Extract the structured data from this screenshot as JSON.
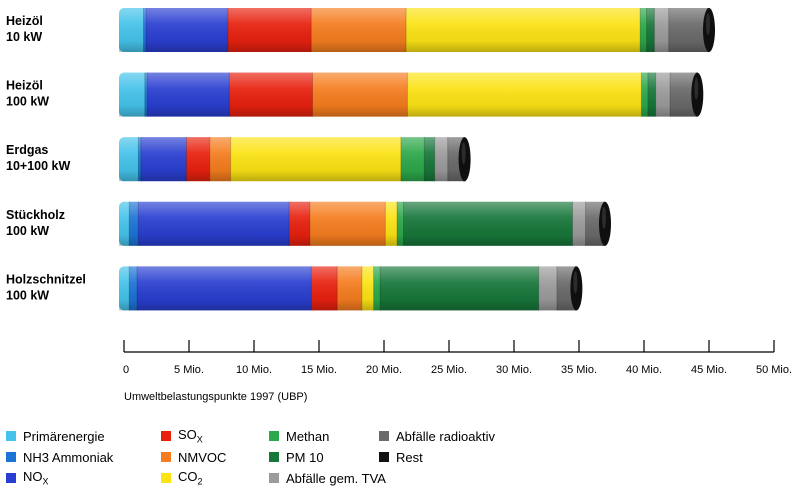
{
  "chart_data": {
    "type": "bar",
    "orientation": "horizontal",
    "stacked": true,
    "xlabel": "Umweltbelastungspunkte 1997 (UBP)",
    "xlim": [
      0,
      50000000
    ],
    "ticks": [
      {
        "value": 0,
        "label": "0"
      },
      {
        "value": 5000000,
        "label": "5 Mio."
      },
      {
        "value": 10000000,
        "label": "10 Mio."
      },
      {
        "value": 15000000,
        "label": "15 Mio."
      },
      {
        "value": 20000000,
        "label": "20 Mio."
      },
      {
        "value": 25000000,
        "label": "25 Mio."
      },
      {
        "value": 30000000,
        "label": "30 Mio."
      },
      {
        "value": 35000000,
        "label": "35 Mio."
      },
      {
        "value": 40000000,
        "label": "40 Mio."
      },
      {
        "value": 45000000,
        "label": "45 Mio."
      },
      {
        "value": 50000000,
        "label": "50 Mio."
      }
    ],
    "categories": [
      {
        "line1": "Heizöl",
        "line2": "10 kW"
      },
      {
        "line1": "Heizöl",
        "line2": "100 kW"
      },
      {
        "line1": "Erdgas",
        "line2": "10+100 kW"
      },
      {
        "line1": "Stückholz",
        "line2": "100 kW"
      },
      {
        "line1": "Holzschnitzel",
        "line2": "100 kW"
      }
    ],
    "series": [
      {
        "name": "Primärenergie",
        "sub": "",
        "color": "#45c3ea",
        "values": [
          1500000,
          1600000,
          1100000,
          400000,
          400000
        ]
      },
      {
        "name": "NH3 Ammoniak",
        "sub": "",
        "color": "#1d73d6",
        "values": [
          200000,
          200000,
          200000,
          700000,
          600000
        ]
      },
      {
        "name": "NO",
        "sub": "X",
        "color": "#2a3fd1",
        "values": [
          6300000,
          6300000,
          3500000,
          11600000,
          13400000
        ]
      },
      {
        "name": "SO",
        "sub": "X",
        "color": "#e8210f",
        "values": [
          6400000,
          6400000,
          1800000,
          1600000,
          2000000
        ]
      },
      {
        "name": "NMVOC",
        "sub": "",
        "color": "#f57d1f",
        "values": [
          7300000,
          7300000,
          1600000,
          5800000,
          1900000
        ]
      },
      {
        "name": "CO",
        "sub": "2",
        "color": "#fbe314",
        "values": [
          18000000,
          18000000,
          13100000,
          900000,
          900000
        ]
      },
      {
        "name": "Methan",
        "sub": "",
        "color": "#2ca84a",
        "values": [
          500000,
          500000,
          1800000,
          500000,
          500000
        ]
      },
      {
        "name": "PM 10",
        "sub": "",
        "color": "#17773a",
        "values": [
          600000,
          600000,
          800000,
          13000000,
          12200000
        ]
      },
      {
        "name": "Abfälle gem. TVA",
        "sub": "",
        "color": "#9b9b9b",
        "values": [
          1100000,
          1100000,
          1000000,
          1000000,
          1400000
        ]
      },
      {
        "name": "Abfälle radioaktiv",
        "sub": "",
        "color": "#6a6a6a",
        "values": [
          3000000,
          2000000,
          1200000,
          1400000,
          1400000
        ]
      },
      {
        "name": "Rest",
        "sub": "",
        "color": "#111111",
        "values": [
          100000,
          100000,
          100000,
          100000,
          100000
        ]
      }
    ],
    "legend_position": "bottom",
    "grid": false
  }
}
